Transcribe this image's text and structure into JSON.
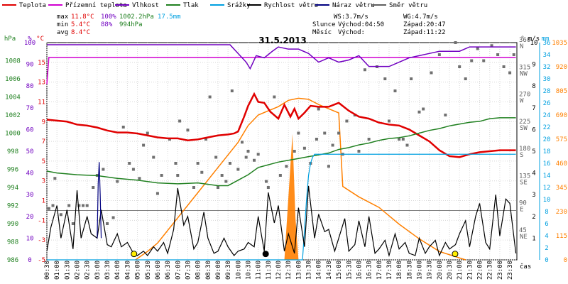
{
  "legend": [
    {
      "label": "Teplota",
      "color": "#e00000"
    },
    {
      "label": "Přízemní teplota",
      "color": "#d000d0"
    },
    {
      "label": "Vlhkost",
      "color": "#7000c0"
    },
    {
      "label": "Tlak",
      "color": "#208020"
    },
    {
      "label": "Srážky",
      "color": "#00a0e0"
    },
    {
      "label": "Rychlost větru",
      "color": "#000000"
    },
    {
      "label": "Náraz větru",
      "color": "#000080"
    },
    {
      "label": "Směr větru",
      "color": "#606060"
    }
  ],
  "stats": {
    "max_label": "max",
    "max_temp": "11.8°C",
    "max_hum": "100%",
    "max_press": "1002.2hPa",
    "rain": "17.5mm",
    "min_label": "min",
    "min_temp": "5.4°C",
    "min_hum": "88%",
    "min_press": "994hPa",
    "avg_label": "avg",
    "avg_temp": "8.4°C",
    "ws": "WS:3.7m/s",
    "wg": "WG:4.7m/s",
    "sun_label": "Slunce",
    "sunrise": "Východ:04:50",
    "sunset": "Západ:20:47",
    "moon_label": "Měsíc",
    "moonrise": "Východ:",
    "moonset": "Západ:11:22"
  },
  "colors": {
    "temp": "#e00000",
    "ground": "#d000d0",
    "humidity": "#7000c0",
    "pressure": "#208020",
    "rain": "#00a0e0",
    "wind": "#000000",
    "gust": "#000080",
    "direction": "#606060",
    "solar": "#ff8000"
  },
  "chart_data": {
    "type": "line",
    "title": "31.5.2013",
    "xlabel": "čas",
    "x_ticks": [
      "00:30",
      "01:00",
      "01:30",
      "02:00",
      "02:30",
      "03:00",
      "03:30",
      "04:00",
      "04:30",
      "05:00",
      "05:30",
      "06:00",
      "06:30",
      "07:00",
      "07:30",
      "08:00",
      "08:30",
      "09:00",
      "09:30",
      "10:00",
      "10:30",
      "11:00",
      "11:30",
      "12:00",
      "12:30",
      "13:00",
      "13:30",
      "14:00",
      "14:30",
      "15:00",
      "15:30",
      "16:00",
      "16:30",
      "17:00",
      "17:30",
      "18:00",
      "18:30",
      "19:00",
      "19:30",
      "20:00",
      "20:30",
      "21:00",
      "21:30",
      "22:00",
      "22:30",
      "23:00",
      "23:30"
    ],
    "x_tick_labels": [
      "00:30",
      "01:00",
      "01:30",
      "02:00",
      "02:30",
      "03:00",
      "03:30",
      "04:00",
      "04:30",
      "05:00",
      "05:30",
      "06:00",
      "06:30",
      "07:00",
      "07:30",
      "08:00",
      "08:30",
      "09:00",
      "09:30",
      "10:00",
      "10:30",
      "11:00",
      "11:30",
      "12:00",
      "12:30",
      "13:00",
      "13:30",
      "14:00",
      "14:30",
      "15:00",
      "15:30",
      "16:00",
      "16:30",
      "17:00",
      "17:30",
      "18:00",
      "18:30",
      "19:00",
      "19:30",
      "20:00",
      "20:30",
      "21:00",
      "21:30",
      "22:00",
      "22:30",
      "23:00",
      "23:30"
    ],
    "x_range": [
      "00:30",
      "23:50"
    ],
    "axes": {
      "pressure": {
        "label": "hPa",
        "range": [
          986,
          1010
        ],
        "ticks": [
          986,
          988,
          990,
          992,
          994,
          996,
          998,
          1000,
          1002,
          1004,
          1006,
          1008
        ]
      },
      "humidity": {
        "label": "%",
        "range": [
          0,
          100
        ],
        "ticks": [
          0,
          10,
          20,
          30,
          40,
          50,
          60,
          70,
          80,
          90,
          100
        ]
      },
      "temperature": {
        "label": "°C",
        "range": [
          -5,
          17
        ],
        "ticks": [
          -5,
          -3,
          -1,
          1,
          3,
          5,
          7,
          9,
          11,
          13,
          15
        ]
      },
      "direction": {
        "label": "°",
        "range": [
          0,
          360
        ],
        "ticks": [
          "360 N",
          "315 NW",
          "270 W",
          "225 SW",
          "180 S",
          "135 SE",
          "90 E",
          "45 NE"
        ]
      },
      "wind": {
        "label": "m/s",
        "range": [
          0,
          10
        ],
        "ticks": [
          1,
          2,
          3,
          4,
          5,
          6,
          7,
          8,
          9,
          10
        ]
      },
      "rain": {
        "label": "mm",
        "range": [
          0,
          36
        ],
        "ticks": [
          0,
          2,
          4,
          6,
          8,
          10,
          12,
          14,
          16,
          18,
          20,
          22,
          24,
          26,
          28,
          30,
          32,
          34,
          36
        ]
      },
      "solar": {
        "range": [
          0,
          1035
        ],
        "ticks": [
          0,
          115,
          230,
          345,
          460,
          575,
          690,
          805,
          920,
          1035
        ]
      }
    },
    "series": [
      {
        "name": "Teplota",
        "axis": "temperature",
        "x": [
          0.5,
          1,
          1.5,
          2,
          2.5,
          3,
          3.5,
          4,
          4.5,
          5,
          5.5,
          6,
          6.5,
          7,
          7.5,
          8,
          8.5,
          9,
          9.5,
          9.8,
          10,
          10.3,
          10.5,
          10.8,
          11,
          11.3,
          11.6,
          12,
          12.3,
          12.6,
          12.8,
          13,
          13.3,
          13.6,
          14,
          14.5,
          15,
          15.5,
          16,
          16.5,
          17,
          17.5,
          18,
          18.5,
          19,
          19.5,
          20,
          20.5,
          21,
          21.5,
          22,
          22.5,
          23,
          23.5,
          23.8
        ],
        "y": [
          9.2,
          9.1,
          9.0,
          8.7,
          8.6,
          8.4,
          8.1,
          7.9,
          7.9,
          7.8,
          7.6,
          7.4,
          7.3,
          7.3,
          7.1,
          7.2,
          7.4,
          7.6,
          7.7,
          7.8,
          8.0,
          9.5,
          10.6,
          11.8,
          11.0,
          10.9,
          10.0,
          9.3,
          10.7,
          9.5,
          10.3,
          9.3,
          9.9,
          10.6,
          10.5,
          10.5,
          10.9,
          10.1,
          9.5,
          9.3,
          8.9,
          8.7,
          8.6,
          8.2,
          7.6,
          7.0,
          6.1,
          5.5,
          5.4,
          5.7,
          5.9,
          6.0,
          6.1,
          6.1,
          6.1
        ]
      },
      {
        "name": "Přízemní teplota",
        "axis": "temperature",
        "x": [
          0.5,
          0.6,
          23.8
        ],
        "y": [
          12.8,
          15.5,
          15.5
        ]
      },
      {
        "name": "Vlhkost",
        "axis": "humidity",
        "x": [
          0.5,
          9.6,
          9.9,
          10.2,
          10.4,
          10.6,
          10.9,
          11.3,
          11.7,
          12,
          12.5,
          13,
          13.5,
          14,
          14.5,
          15,
          15.5,
          16,
          16.5,
          17,
          17.5,
          18,
          18.5,
          19,
          19.5,
          20,
          20.5,
          21,
          21.5,
          22,
          22.5,
          23,
          23.8
        ],
        "y": [
          99,
          99,
          96,
          93,
          91,
          88,
          94,
          93,
          96,
          98,
          97,
          97,
          95,
          91,
          93,
          91,
          92,
          94,
          89,
          89,
          89,
          91,
          93,
          94,
          95,
          96,
          96,
          96,
          98,
          98,
          98,
          98,
          98
        ]
      },
      {
        "name": "Tlak",
        "axis": "pressure",
        "x": [
          0.5,
          1,
          2,
          3,
          4,
          5,
          6,
          7,
          8,
          9,
          9.5,
          10,
          10.5,
          11,
          11.5,
          12,
          12.5,
          13,
          13.5,
          14,
          14.5,
          15,
          15.5,
          16,
          16.5,
          17,
          17.5,
          18,
          18.5,
          19,
          19.5,
          20,
          20.5,
          21,
          21.5,
          22,
          22.5,
          23,
          23.8
        ],
        "y": [
          995.8,
          995.6,
          995.4,
          995.3,
          995.0,
          994.8,
          994.5,
          994.4,
          994.5,
          994.2,
          994.2,
          994.8,
          995.4,
          996.2,
          996.5,
          996.8,
          997.0,
          997.2,
          997.4,
          997.6,
          997.8,
          998.2,
          998.4,
          998.7,
          998.9,
          999.2,
          999.4,
          999.5,
          999.7,
          1000.0,
          1000.3,
          1000.5,
          1000.8,
          1001.0,
          1001.2,
          1001.3,
          1001.6,
          1001.7,
          1001.7
        ]
      },
      {
        "name": "Srážky",
        "axis": "rain",
        "x": [
          0.5,
          13.2,
          13.3,
          13.4,
          13.5,
          13.6,
          13.7,
          13.8,
          14,
          14.5,
          16,
          18,
          20,
          22,
          23.8
        ],
        "y": [
          0,
          0,
          5,
          10,
          14,
          16,
          17,
          17.5,
          17.5,
          17.5,
          17.5,
          17.5,
          17.5,
          17.5,
          17.5
        ]
      },
      {
        "name": "Rychlost větru",
        "axis": "wind",
        "x": [
          0.5,
          0.7,
          1,
          1.2,
          1.5,
          1.8,
          2,
          2.2,
          2.5,
          2.7,
          3,
          3.2,
          3.5,
          3.7,
          4,
          4.2,
          4.5,
          4.8,
          5,
          5.3,
          5.5,
          5.8,
          6,
          6.3,
          6.5,
          6.8,
          7,
          7.3,
          7.5,
          7.8,
          8,
          8.3,
          8.5,
          8.8,
          9,
          9.3,
          9.5,
          9.8,
          10,
          10.3,
          10.5,
          10.8,
          11,
          11.3,
          11.5,
          11.8,
          12,
          12.3,
          12.5,
          12.8,
          13,
          13.3,
          13.5,
          13.8,
          14,
          14.3,
          14.5,
          14.8,
          15,
          15.3,
          15.5,
          15.8,
          16,
          16.3,
          16.5,
          16.8,
          17,
          17.3,
          17.5,
          17.8,
          18,
          18.3,
          18.5,
          18.8,
          19,
          19.3,
          19.5,
          19.8,
          20,
          20.3,
          20.5,
          20.8,
          21,
          21.3,
          21.5,
          21.8,
          22,
          22.3,
          22.5,
          22.8,
          23,
          23.3,
          23.5,
          23.8
        ],
        "y": [
          0.4,
          1.5,
          2.5,
          1.0,
          2.3,
          0.5,
          3.2,
          1.0,
          2.0,
          1.2,
          1.0,
          2.3,
          0.7,
          0.6,
          1.2,
          0.6,
          0.8,
          0.3,
          0.2,
          0.4,
          0.2,
          0.6,
          0.4,
          0.8,
          0.3,
          1.4,
          3.3,
          1.6,
          2.0,
          0.5,
          0.8,
          2.2,
          1.0,
          0.3,
          0.4,
          1.0,
          0.6,
          0.2,
          0.4,
          0.5,
          0.8,
          0.6,
          2.0,
          0.4,
          3.1,
          1.7,
          2.5,
          0.4,
          1.2,
          0.3,
          2.4,
          0.6,
          3.4,
          1.0,
          2.1,
          1.3,
          1.4,
          0.4,
          1.0,
          1.9,
          0.4,
          0.7,
          1.8,
          0.6,
          2.0,
          0.3,
          0.5,
          0.9,
          0.2,
          1.2,
          0.5,
          0.8,
          0.3,
          0.2,
          1.0,
          0.3,
          0.6,
          0.9,
          0.2,
          0.8,
          0.5,
          0.7,
          1.2,
          1.8,
          0.6,
          2.0,
          2.6,
          0.8,
          0.5,
          3.0,
          1.1,
          2.8,
          2.6,
          0.3
        ]
      },
      {
        "name": "Náraz větru",
        "axis": "wind",
        "x": [
          3.0,
          3.05,
          3.1,
          3.15,
          3.2
        ],
        "y": [
          1.0,
          3.5,
          4.5,
          3.0,
          1.0
        ]
      },
      {
        "name": "Solar",
        "axis": "solar",
        "x": [
          4.9,
          5.5,
          6,
          7,
          8,
          9,
          10,
          10.5,
          11,
          12,
          12.5,
          13,
          13.5,
          14,
          14.5,
          15,
          15.2,
          16,
          17,
          18,
          19,
          20,
          21.3
        ],
        "y": [
          0,
          40,
          80,
          200,
          320,
          440,
          560,
          640,
          690,
          730,
          760,
          770,
          765,
          740,
          720,
          700,
          350,
          300,
          250,
          170,
          100,
          40,
          0
        ]
      }
    ],
    "wind_direction": {
      "axis": "direction",
      "points": [
        [
          0.6,
          85
        ],
        [
          0.8,
          90
        ],
        [
          0.9,
          135
        ],
        [
          1.2,
          75
        ],
        [
          1.6,
          90
        ],
        [
          1.8,
          60
        ],
        [
          2.1,
          90
        ],
        [
          2.3,
          90
        ],
        [
          2.5,
          90
        ],
        [
          2.8,
          120
        ],
        [
          3.0,
          140
        ],
        [
          3.3,
          150
        ],
        [
          3.5,
          60
        ],
        [
          3.8,
          70
        ],
        [
          4.0,
          130
        ],
        [
          4.3,
          220
        ],
        [
          4.6,
          160
        ],
        [
          4.8,
          150
        ],
        [
          5.1,
          135
        ],
        [
          5.3,
          190
        ],
        [
          5.5,
          210
        ],
        [
          5.8,
          170
        ],
        [
          6.0,
          110
        ],
        [
          6.2,
          140
        ],
        [
          6.6,
          200
        ],
        [
          6.9,
          160
        ],
        [
          7.0,
          140
        ],
        [
          7.1,
          230
        ],
        [
          7.5,
          215
        ],
        [
          7.8,
          120
        ],
        [
          8.0,
          160
        ],
        [
          8.2,
          145
        ],
        [
          8.4,
          200
        ],
        [
          8.6,
          270
        ],
        [
          8.9,
          170
        ],
        [
          9.0,
          120
        ],
        [
          9.2,
          140
        ],
        [
          9.4,
          130
        ],
        [
          9.6,
          160
        ],
        [
          9.7,
          280
        ],
        [
          10.0,
          150
        ],
        [
          10.2,
          195
        ],
        [
          10.4,
          170
        ],
        [
          10.5,
          180
        ],
        [
          10.8,
          165
        ],
        [
          11.0,
          175
        ],
        [
          11.4,
          130
        ],
        [
          11.5,
          120
        ],
        [
          11.8,
          270
        ],
        [
          12.1,
          140
        ],
        [
          12.4,
          155
        ],
        [
          12.8,
          180
        ],
        [
          13.0,
          210
        ],
        [
          13.3,
          185
        ],
        [
          13.6,
          160
        ],
        [
          13.9,
          200
        ],
        [
          14.0,
          250
        ],
        [
          14.3,
          210
        ],
        [
          14.5,
          155
        ],
        [
          14.7,
          190
        ],
        [
          15.0,
          210
        ],
        [
          15.2,
          175
        ],
        [
          15.4,
          230
        ],
        [
          15.8,
          240
        ],
        [
          16.0,
          180
        ],
        [
          16.3,
          315
        ],
        [
          16.5,
          200
        ],
        [
          16.9,
          320
        ],
        [
          17.3,
          300
        ],
        [
          17.5,
          230
        ],
        [
          17.8,
          280
        ],
        [
          18.0,
          200
        ],
        [
          18.2,
          200
        ],
        [
          18.4,
          190
        ],
        [
          18.6,
          300
        ],
        [
          19.0,
          245
        ],
        [
          19.2,
          250
        ],
        [
          19.6,
          310
        ],
        [
          20.0,
          340
        ],
        [
          20.3,
          240
        ],
        [
          20.8,
          360
        ],
        [
          21.0,
          320
        ],
        [
          21.3,
          300
        ],
        [
          21.6,
          330
        ],
        [
          21.9,
          350
        ],
        [
          22.2,
          330
        ],
        [
          22.6,
          355
        ],
        [
          22.9,
          340
        ],
        [
          23.2,
          320
        ],
        [
          23.5,
          310
        ],
        [
          23.7,
          340
        ]
      ]
    },
    "markers": [
      {
        "label": "sunrise",
        "x": 4.83,
        "y_temp": -4.4
      },
      {
        "label": "sunset",
        "x": 20.78,
        "y_temp": -4.4
      },
      {
        "label": "moonset",
        "x": 11.37,
        "y_temp": -4.4
      }
    ],
    "grid": true
  }
}
